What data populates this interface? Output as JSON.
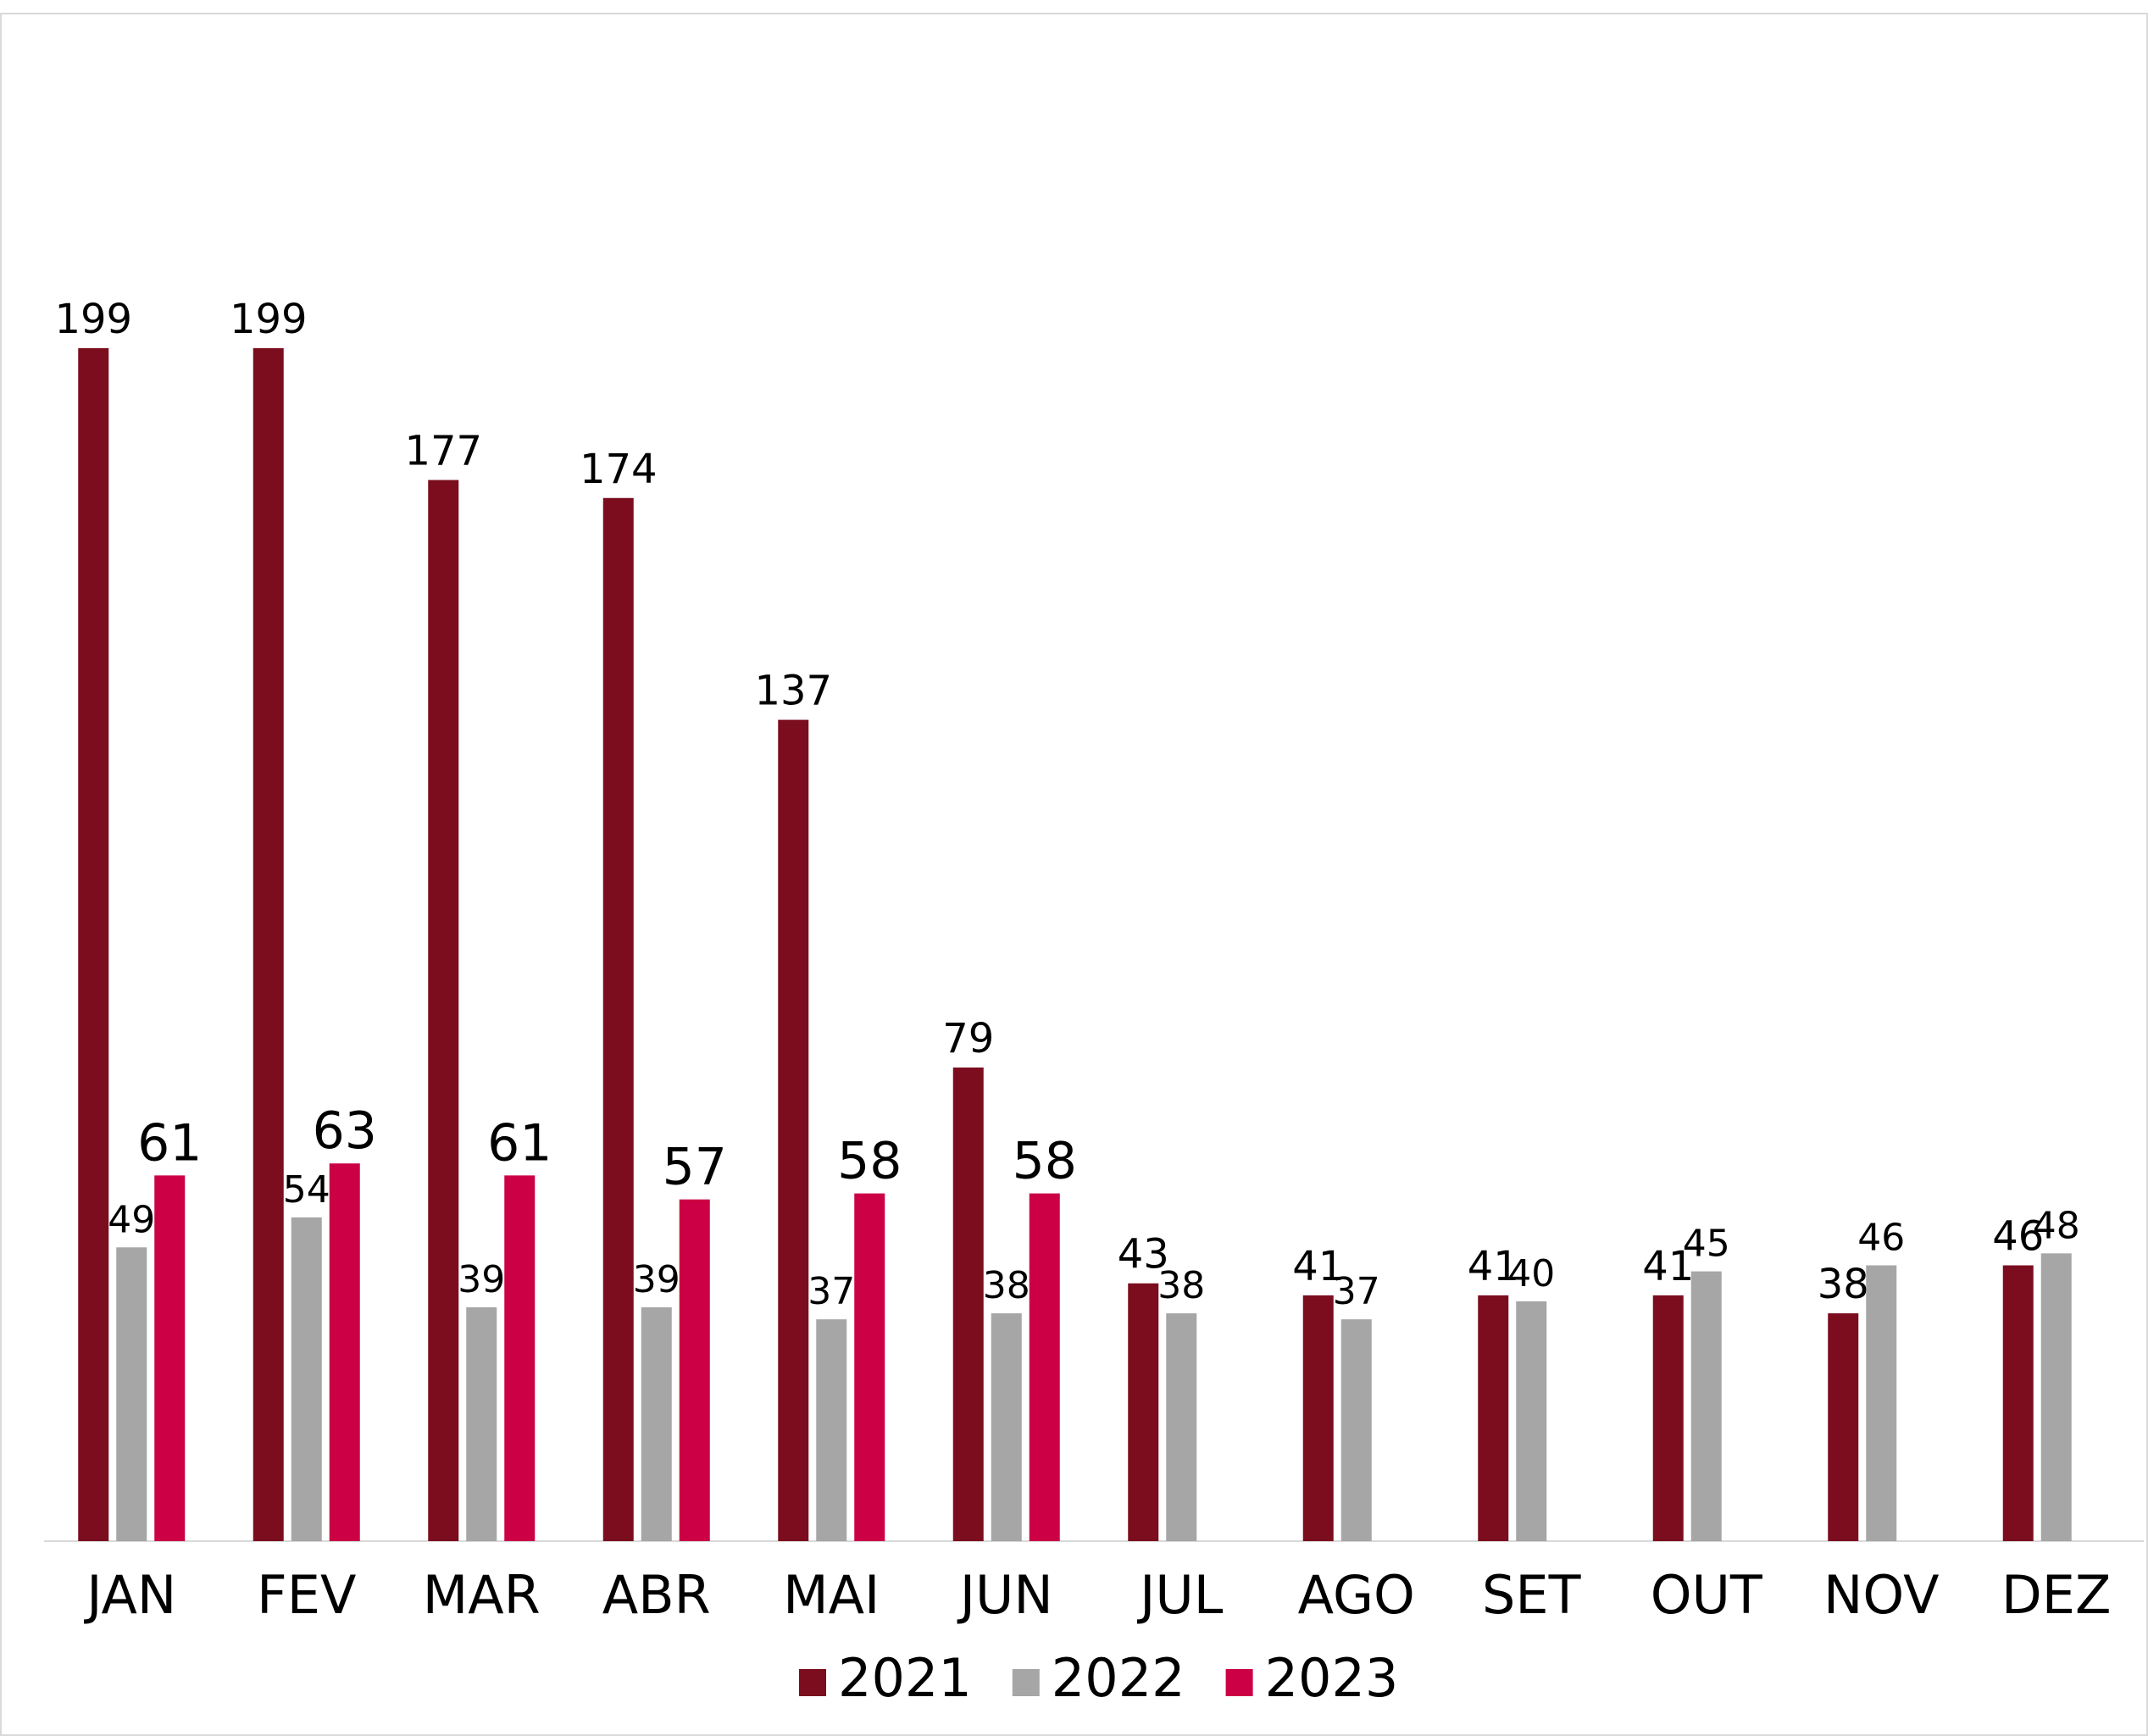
{
  "chart_data": {
    "type": "bar",
    "categories": [
      "JAN",
      "FEV",
      "MAR",
      "ABR",
      "MAI",
      "JUN",
      "JUL",
      "AGO",
      "SET",
      "OUT",
      "NOV",
      "DEZ"
    ],
    "series": [
      {
        "name": "2021",
        "color": "#7b0d1e",
        "values": [
          199,
          199,
          177,
          174,
          137,
          79,
          43,
          41,
          41,
          41,
          38,
          46
        ]
      },
      {
        "name": "2022",
        "color": "#a6a6a6",
        "values": [
          49,
          54,
          39,
          39,
          37,
          38,
          38,
          37,
          40,
          45,
          46,
          48
        ]
      },
      {
        "name": "2023",
        "color": "#cc0044",
        "values": [
          61,
          63,
          61,
          57,
          58,
          58,
          null,
          null,
          null,
          null,
          null,
          null
        ]
      }
    ],
    "ylim": [
      0,
      250
    ],
    "grid": false,
    "legend": "bottom"
  }
}
